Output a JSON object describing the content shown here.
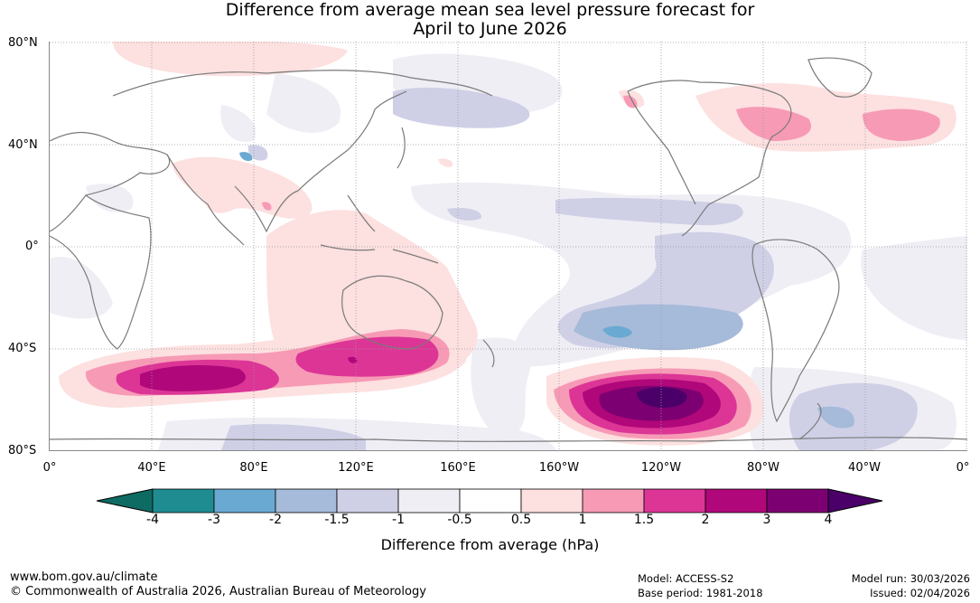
{
  "title": {
    "line1": "Difference from average mean sea level pressure forecast for",
    "line2": "April to June 2026"
  },
  "map": {
    "lat_labels": [
      "80°N",
      "40°N",
      "0°",
      "40°S",
      "80°S"
    ],
    "lon_labels": [
      "0°",
      "40°E",
      "80°E",
      "120°E",
      "160°E",
      "160°W",
      "120°W",
      "80°W",
      "40°W",
      "0°"
    ],
    "description_icon": "world-map-anomaly"
  },
  "colorbar": {
    "ticks": [
      "-4",
      "-3",
      "-2",
      "-1.5",
      "-1",
      "-0.5",
      "0.5",
      "1",
      "1.5",
      "2",
      "3",
      "4"
    ],
    "colors": [
      "#0e6b63",
      "#1f8c92",
      "#6aa9d2",
      "#a6bad9",
      "#cfd0e6",
      "#f0eef5",
      "#ffffff",
      "#fde0e0",
      "#f79ab6",
      "#dc3596",
      "#b0077a",
      "#7d0072",
      "#4a0068"
    ],
    "label": "Difference from average (hPa)"
  },
  "footer": {
    "website": "www.bom.gov.au/climate",
    "copyright": "© Commonwealth of Australia 2026, Australian Bureau of Meteorology",
    "model": "Model: ACCESS-S2",
    "base_period": "Base period: 1981-2018",
    "model_run": "Model run: 30/03/2026",
    "issued": "Issued: 02/04/2026"
  }
}
